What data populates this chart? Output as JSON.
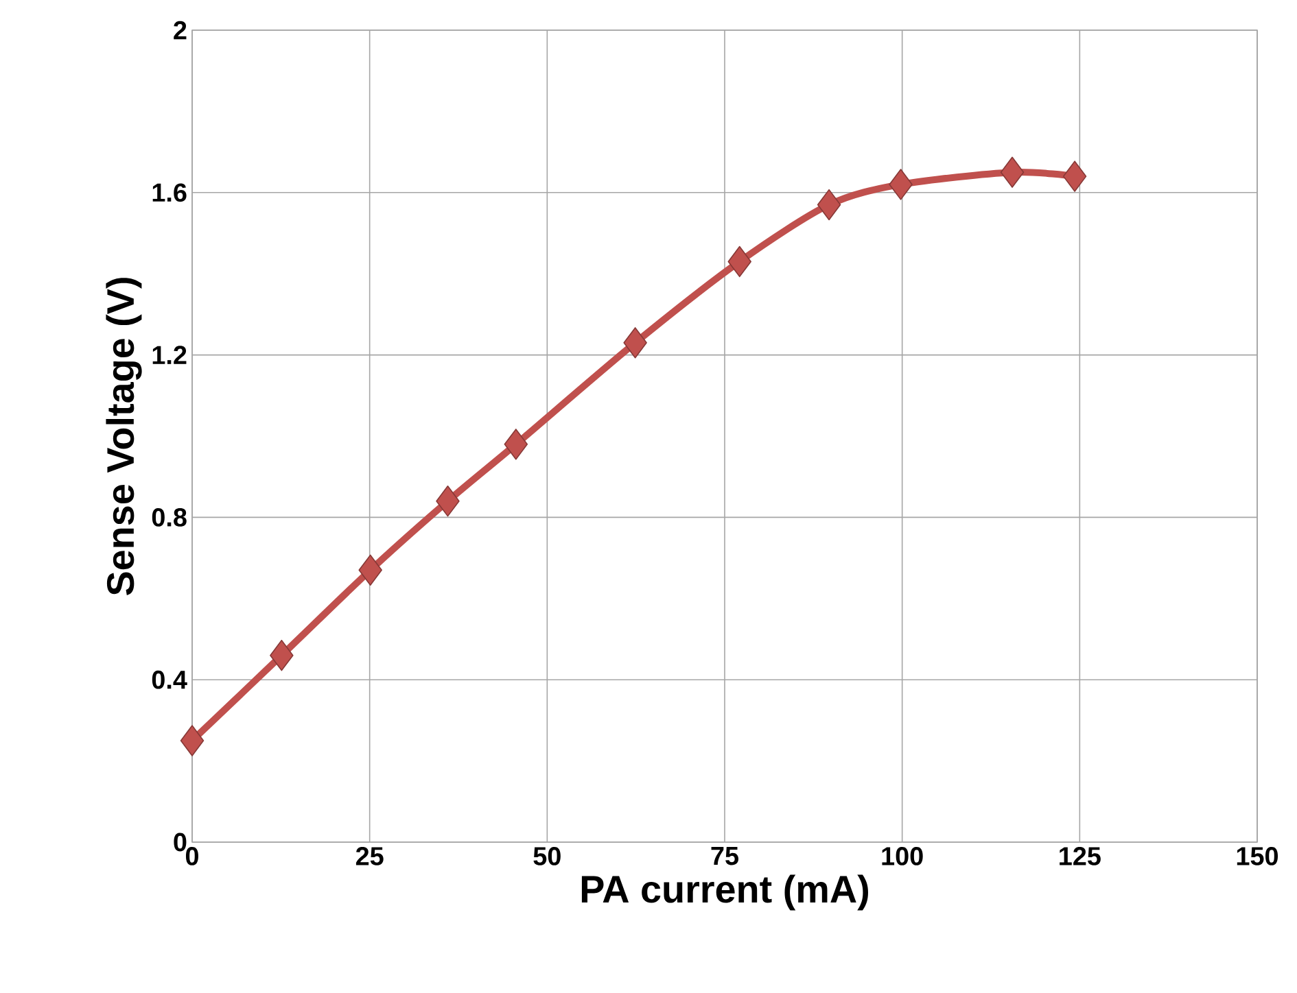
{
  "chart_data": {
    "type": "line",
    "xlabel": "PA current (mA)",
    "ylabel": "Sense Voltage (V)",
    "x": [
      0,
      12.6,
      25.1,
      36,
      45.6,
      62.4,
      77.1,
      89.7,
      99.8,
      115.5,
      124.3
    ],
    "values": [
      0.25,
      0.46,
      0.67,
      0.84,
      0.98,
      1.23,
      1.43,
      1.57,
      1.62,
      1.65,
      1.64
    ],
    "color": "#c0504d",
    "marker": "diamond",
    "grid": true,
    "xlim": [
      0,
      150
    ],
    "ylim": [
      0,
      2
    ],
    "xticks": [
      0,
      25,
      50,
      75,
      100,
      125,
      150
    ],
    "yticks": [
      0,
      0.4,
      0.8,
      1.2,
      1.6,
      2
    ]
  }
}
